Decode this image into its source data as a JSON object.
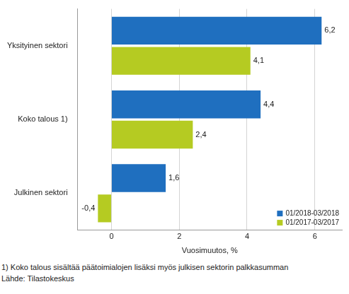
{
  "chart_data": {
    "type": "bar",
    "orientation": "horizontal",
    "categories": [
      "Yksityinen sektori",
      "Koko talous 1)",
      "Julkinen sektori"
    ],
    "series": [
      {
        "name": "01/2018-03/2018",
        "color": "#1f6fbf",
        "values": [
          6.2,
          4.4,
          1.6
        ],
        "value_labels": [
          "6,2",
          "4,4",
          "1,6"
        ]
      },
      {
        "name": "01/2017-03/2017",
        "color": "#b5cb22",
        "values": [
          4.1,
          2.4,
          -0.4
        ],
        "value_labels": [
          "4,1",
          "2,4",
          "-0,4"
        ]
      }
    ],
    "xlabel": "Vuosimuutos, %",
    "xlim": [
      -1,
      6.8
    ],
    "xticks": [
      0,
      2,
      4,
      6
    ],
    "grid": true,
    "legend": "lower right",
    "data_labels": true,
    "annotations": [
      "1) Koko talous sisältää päätoimialojen lisäksi myös julkisen sektorin palkkasumman",
      "Lähde: Tilastokeskus"
    ]
  }
}
